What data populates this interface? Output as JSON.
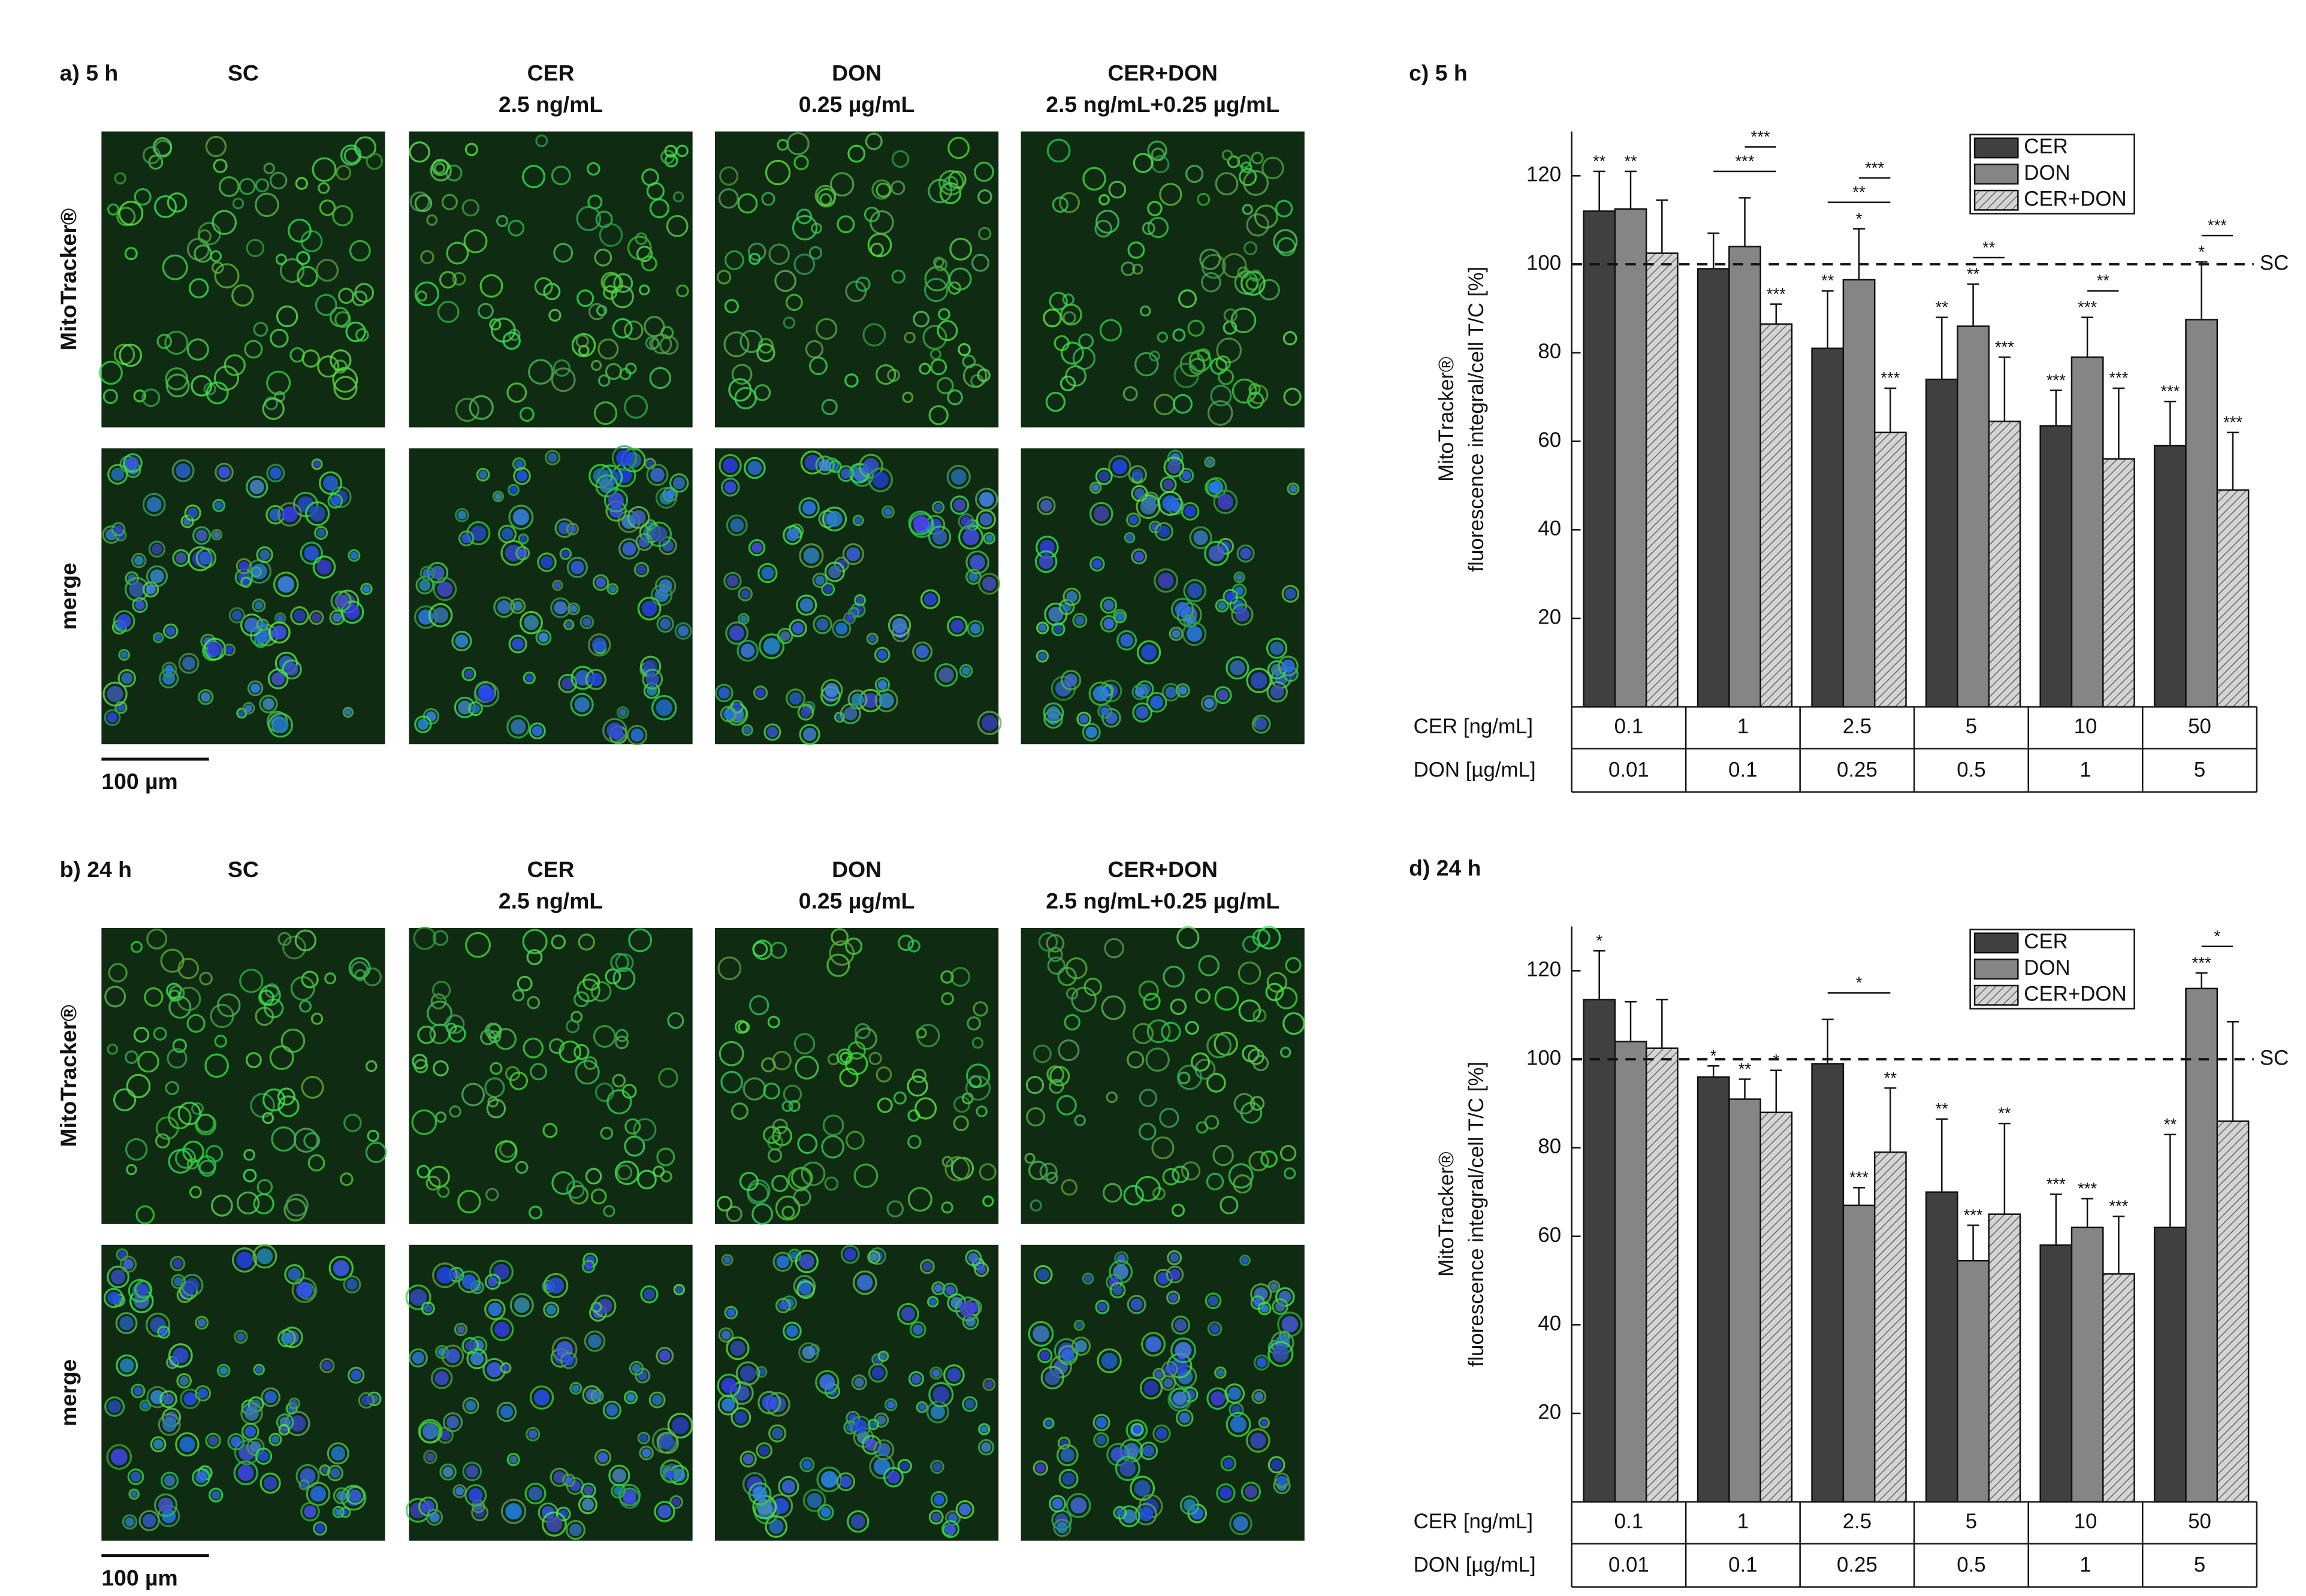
{
  "panels": [
    {
      "title": "a) 5 h",
      "columns": [
        [
          "SC"
        ],
        [
          "CER",
          "2.5 ng/mL"
        ],
        [
          "DON",
          "0.25 µg/mL"
        ],
        [
          "CER+DON",
          "2.5 ng/mL+0.25 µg/mL"
        ]
      ],
      "rows": [
        "MitoTracker®",
        "merge"
      ],
      "scale_bar": "100 µm"
    },
    {
      "title": "b) 24 h",
      "columns": [
        [
          "SC"
        ],
        [
          "CER",
          "2.5 ng/mL"
        ],
        [
          "DON",
          "0.25 µg/mL"
        ],
        [
          "CER+DON",
          "2.5 ng/mL+0.25 µg/mL"
        ]
      ],
      "rows": [
        "MitoTracker®",
        "merge"
      ],
      "scale_bar": "100 µm"
    }
  ],
  "chart_data": [
    {
      "type": "bar",
      "title": "c) 5 h",
      "ylabel": [
        "MitoTracker®",
        "fluorescence integral/cell T/C [%]"
      ],
      "ylim": [
        0,
        130
      ],
      "yticks": [
        20,
        40,
        60,
        80,
        100,
        120
      ],
      "legend": "upper right",
      "category_rows": [
        {
          "name": "CER [ng/mL]",
          "labels": [
            "0.1",
            "1",
            "2.5",
            "5",
            "10",
            "50"
          ]
        },
        {
          "name": "DON [µg/mL]",
          "labels": [
            "0.01",
            "0.1",
            "0.25",
            "0.5",
            "1",
            "5"
          ]
        }
      ],
      "reference": {
        "value": 100,
        "label": "SC"
      },
      "series": [
        {
          "name": "CER",
          "color": "#404040",
          "values": [
            112,
            99,
            81,
            74,
            63.5,
            59
          ],
          "errors": [
            9,
            8,
            13,
            14,
            8,
            10
          ],
          "stars": [
            "**",
            null,
            "**",
            "**",
            "***",
            "***"
          ]
        },
        {
          "name": "DON",
          "color": "#858585",
          "values": [
            112.5,
            104,
            96.5,
            86,
            79,
            87.5
          ],
          "errors": [
            8.5,
            11,
            11.5,
            9.5,
            9,
            13
          ],
          "stars": [
            "**",
            null,
            "*",
            "**",
            "***",
            "*"
          ]
        },
        {
          "name": "CER+DON",
          "color": "#d4d4d4",
          "hatch": true,
          "values": [
            102.5,
            86.5,
            62,
            64.5,
            56,
            49
          ],
          "errors": [
            12,
            4.5,
            10,
            14.5,
            16,
            13
          ],
          "stars": [
            null,
            "***",
            "***",
            "***",
            "***",
            "***"
          ]
        }
      ],
      "comparisons": [
        {
          "label": "***",
          "category": 1,
          "from": 0,
          "to": 2
        },
        {
          "label": "***",
          "category": 1,
          "from": 1,
          "to": 2
        },
        {
          "label": "**",
          "category": 2,
          "from": 0,
          "to": 2
        },
        {
          "label": "***",
          "category": 2,
          "from": 1,
          "to": 2
        },
        {
          "label": "**",
          "category": 3,
          "from": 1,
          "to": 2
        },
        {
          "label": "**",
          "category": 4,
          "from": 1,
          "to": 2
        },
        {
          "label": "***",
          "category": 5,
          "from": 1,
          "to": 2
        }
      ]
    },
    {
      "type": "bar",
      "title": "d) 24 h",
      "ylabel": [
        "MitoTracker®",
        "fluorescence integral/cell T/C [%]"
      ],
      "ylim": [
        0,
        130
      ],
      "yticks": [
        20,
        40,
        60,
        80,
        100,
        120
      ],
      "legend": "upper right",
      "category_rows": [
        {
          "name": "CER [ng/mL]",
          "labels": [
            "0.1",
            "1",
            "2.5",
            "5",
            "10",
            "50"
          ]
        },
        {
          "name": "DON [µg/mL]",
          "labels": [
            "0.01",
            "0.1",
            "0.25",
            "0.5",
            "1",
            "5"
          ]
        }
      ],
      "reference": {
        "value": 100,
        "label": "SC"
      },
      "series": [
        {
          "name": "CER",
          "color": "#404040",
          "values": [
            113.5,
            96,
            99,
            70,
            58,
            62
          ],
          "errors": [
            11,
            2.5,
            10,
            16.5,
            11.5,
            21
          ],
          "stars": [
            "*",
            "*",
            null,
            "**",
            "***",
            "**"
          ]
        },
        {
          "name": "DON",
          "color": "#858585",
          "values": [
            104,
            91,
            67,
            54.5,
            62,
            116
          ],
          "errors": [
            9,
            4.5,
            4,
            8,
            6.5,
            3.5
          ],
          "stars": [
            null,
            "**",
            "***",
            "***",
            "***",
            "***"
          ]
        },
        {
          "name": "CER+DON",
          "color": "#d4d4d4",
          "hatch": true,
          "values": [
            102.5,
            88,
            79,
            65,
            51.5,
            86
          ],
          "errors": [
            11,
            9.5,
            14.5,
            20.5,
            13,
            22.5
          ],
          "stars": [
            null,
            "*",
            "**",
            "**",
            "***",
            null
          ]
        }
      ],
      "comparisons": [
        {
          "label": "*",
          "category": 2,
          "from": 0,
          "to": 2
        },
        {
          "label": "*",
          "category": 5,
          "from": 1,
          "to": 2
        }
      ]
    }
  ]
}
